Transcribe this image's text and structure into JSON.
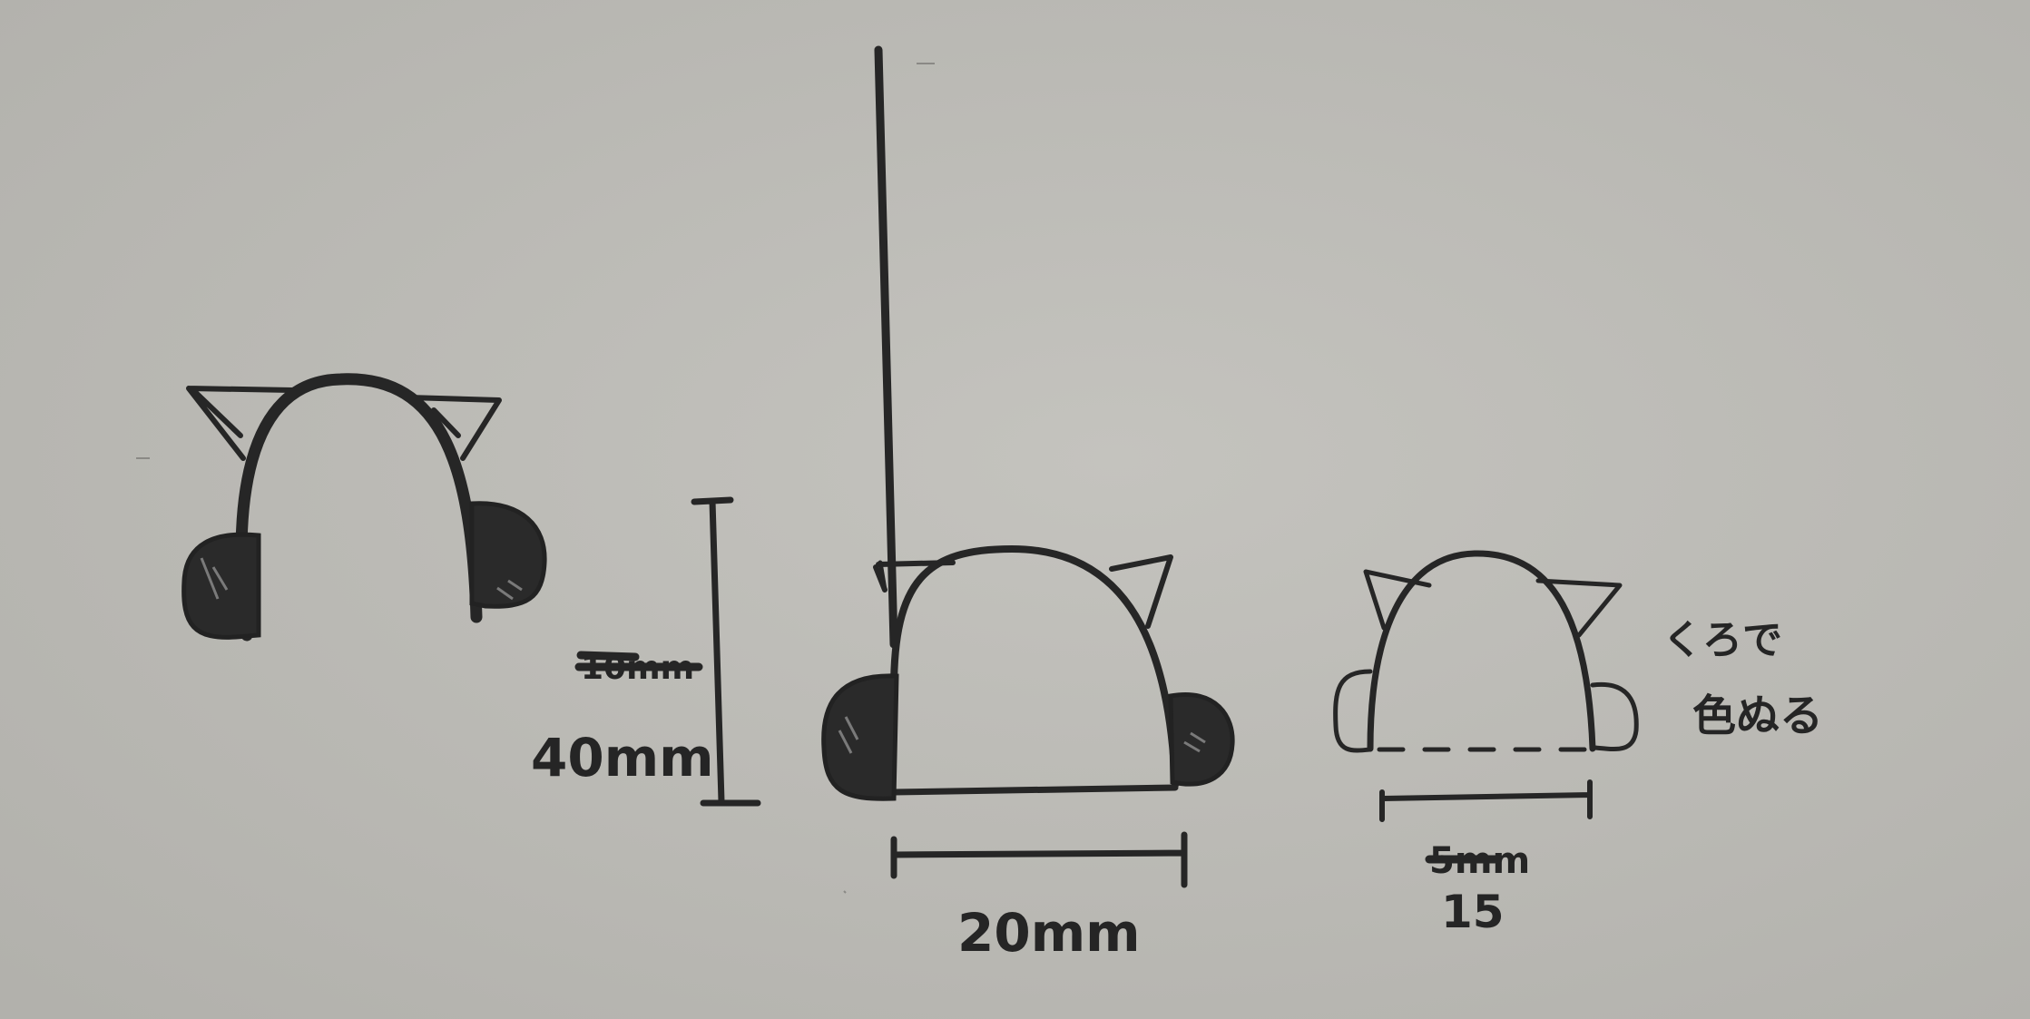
{
  "paper_color": "#bdbcb7",
  "ink_color": "#262626",
  "figures": [
    {
      "id": "headband",
      "description_name": "cat-ear-headband",
      "labels": []
    },
    {
      "id": "front-mount",
      "description_name": "headband-on-stick",
      "labels": {
        "height_struck": "10mm",
        "height": "40mm",
        "width": "20mm"
      }
    },
    {
      "id": "small",
      "description_name": "headband-small",
      "labels": {
        "width_struck": "5mm",
        "width": "15",
        "note_line1": "くろで",
        "note_line2": "色ぬる"
      }
    }
  ]
}
